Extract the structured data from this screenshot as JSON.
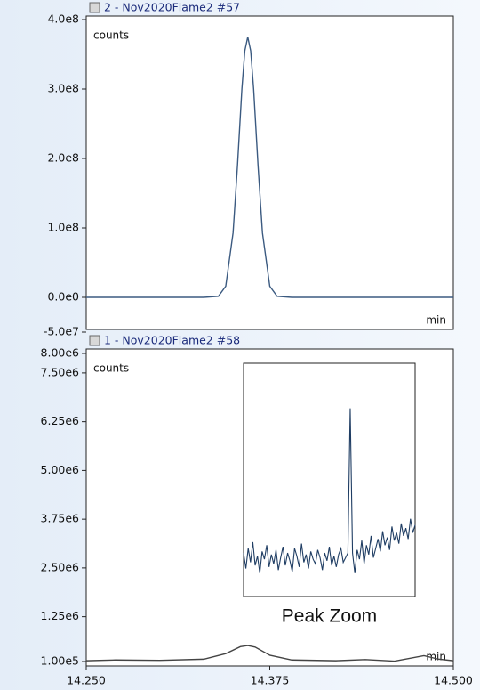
{
  "chart_data": [
    {
      "type": "line",
      "title": "2 - Nov2020Flame2 #57",
      "y_label": "counts",
      "x_label": "min",
      "xlim": [
        14.25,
        14.5
      ],
      "ylim": [
        -50000000,
        400000000
      ],
      "yticks": [
        {
          "value": -50000000,
          "label": "-5.0e7"
        },
        {
          "value": 0,
          "label": "0.0e0"
        },
        {
          "value": 100000000,
          "label": "1.0e8"
        },
        {
          "value": 200000000,
          "label": "2.0e8"
        },
        {
          "value": 300000000,
          "label": "3.0e8"
        },
        {
          "value": 400000000,
          "label": "4.0e8"
        }
      ],
      "series": [
        {
          "color": "#3b5a80",
          "x": [
            14.25,
            14.3,
            14.33,
            14.34,
            14.345,
            14.35,
            14.353,
            14.356,
            14.358,
            14.36,
            14.362,
            14.364,
            14.367,
            14.37,
            14.375,
            14.38,
            14.39,
            14.42,
            14.5
          ],
          "values": [
            0,
            0,
            0,
            1500000,
            16000000,
            93000000,
            190000000,
            300000000,
            355000000,
            375000000,
            355000000,
            300000000,
            190000000,
            93000000,
            16000000,
            1500000,
            0,
            0,
            0
          ]
        }
      ]
    },
    {
      "type": "line",
      "title": "1 - Nov2020Flame2 #58",
      "y_label": "counts",
      "x_label": "min",
      "xlim": [
        14.25,
        14.5
      ],
      "ylim": [
        100000,
        8000000
      ],
      "yticks": [
        {
          "value": 100000,
          "label": "1.00e5"
        },
        {
          "value": 1250000,
          "label": "1.25e6"
        },
        {
          "value": 2500000,
          "label": "2.50e6"
        },
        {
          "value": 3750000,
          "label": "3.75e6"
        },
        {
          "value": 5000000,
          "label": "5.00e6"
        },
        {
          "value": 6250000,
          "label": "6.25e6"
        },
        {
          "value": 7500000,
          "label": "7.50e6"
        },
        {
          "value": 8000000,
          "label": "8.00e6"
        }
      ],
      "xticks": [
        {
          "value": 14.25,
          "label": "14.250"
        },
        {
          "value": 14.375,
          "label": "14.375"
        },
        {
          "value": 14.5,
          "label": "14.500"
        }
      ],
      "series": [
        {
          "color": "#444444",
          "x": [
            14.25,
            14.27,
            14.3,
            14.33,
            14.345,
            14.355,
            14.36,
            14.365,
            14.375,
            14.39,
            14.42,
            14.44,
            14.46,
            14.48,
            14.49,
            14.5
          ],
          "values": [
            120000,
            140000,
            130000,
            160000,
            300000,
            480000,
            510000,
            470000,
            260000,
            140000,
            120000,
            150000,
            110000,
            250000,
            160000,
            120000
          ]
        }
      ],
      "inset": {
        "caption": "Peak Zoom",
        "color": "#1f3d63",
        "ylim": [
          100000,
          250000
        ],
        "values": [
          128000,
          118000,
          131000,
          122000,
          135000,
          120000,
          126000,
          115000,
          129000,
          124000,
          133000,
          119000,
          127000,
          121000,
          130000,
          117000,
          125000,
          132000,
          120000,
          128000,
          123000,
          116000,
          131000,
          126000,
          119000,
          134000,
          122000,
          127000,
          118000,
          129000,
          124000,
          121000,
          130000,
          125000,
          117000,
          128000,
          123000,
          132000,
          120000,
          126000,
          119000,
          127000,
          131000,
          122000,
          125000,
          128000,
          221000,
          128000,
          115000,
          130000,
          124000,
          136000,
          121000,
          133000,
          127000,
          139000,
          125000,
          131000,
          137000,
          129000,
          142000,
          133000,
          138000,
          130000,
          145000,
          136000,
          141000,
          134000,
          147000,
          139000,
          144000,
          137000,
          150000,
          141000,
          146000
        ]
      }
    }
  ]
}
